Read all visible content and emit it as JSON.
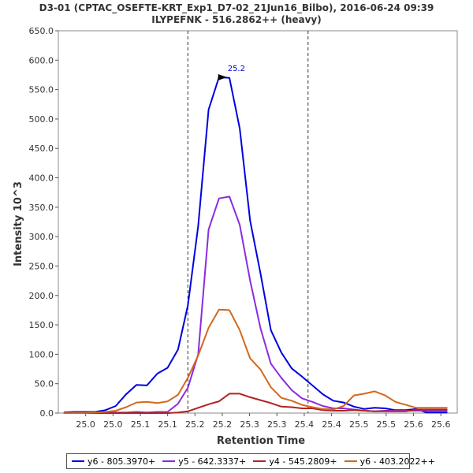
{
  "chart_data": {
    "type": "line",
    "title": "D3-01 (CPTAC_OSEFTE-KRT_Exp1_D7-02_21Jun16_Bilbo), 2016-06-24 09:39",
    "subtitle": "ILYPEFNK - 516.2862++ (heavy)",
    "xlabel": "Retention Time",
    "ylabel": "Intensity 10^3",
    "xlim": [
      24.95,
      25.68
    ],
    "ylim": [
      0,
      650
    ],
    "x_ticks": [
      25.0,
      25.05,
      25.1,
      25.15,
      25.2,
      25.25,
      25.3,
      25.35,
      25.4,
      25.45,
      25.5,
      25.55,
      25.6,
      25.65
    ],
    "x_tick_labels": [
      "25.0",
      "25.0",
      "25.1",
      "25.1",
      "25.2",
      "25.2",
      "25.3",
      "25.3",
      "25.4",
      "25.4",
      "25.5",
      "25.5",
      "25.6",
      "25.6"
    ],
    "y_ticks": [
      0,
      50,
      100,
      150,
      200,
      250,
      300,
      350,
      400,
      450,
      500,
      550,
      600,
      650
    ],
    "y_tick_labels": [
      "0.0",
      "50.0",
      "100.0",
      "150.0",
      "200.0",
      "250.0",
      "300.0",
      "350.0",
      "400.0",
      "450.0",
      "500.0",
      "550.0",
      "600.0",
      "650.0"
    ],
    "boundaries": [
      25.187,
      25.407
    ],
    "peak_label": "25.2",
    "peak_label_x": 25.254,
    "peak_label_y": 571,
    "x": [
      24.96,
      24.979,
      24.998,
      25.017,
      25.036,
      25.055,
      25.074,
      25.093,
      25.112,
      25.131,
      25.15,
      25.169,
      25.187,
      25.206,
      25.225,
      25.244,
      25.263,
      25.282,
      25.301,
      25.32,
      25.339,
      25.358,
      25.377,
      25.396,
      25.415,
      25.434,
      25.453,
      25.472,
      25.491,
      25.51,
      25.529,
      25.548,
      25.567,
      25.586,
      25.605,
      25.624,
      25.643,
      25.662
    ],
    "series": [
      {
        "name": "y6 - 805.3970+",
        "color": "#0000e0",
        "values": [
          1,
          2,
          2,
          2,
          5,
          12,
          32,
          48,
          47,
          67,
          77,
          108,
          183,
          318,
          516,
          571,
          570,
          484,
          327,
          237,
          141,
          103,
          76,
          62,
          47,
          32,
          21,
          18,
          11,
          7,
          9,
          8,
          5,
          5,
          7,
          1,
          1,
          1
        ]
      },
      {
        "name": "y5 - 642.3337+",
        "color": "#8a2be2",
        "values": [
          0,
          1,
          1,
          1,
          1,
          1,
          1,
          2,
          1,
          2,
          2,
          16,
          43,
          100,
          312,
          365,
          368,
          320,
          225,
          144,
          84,
          60,
          39,
          25,
          19,
          12,
          8,
          8,
          6,
          4,
          3,
          4,
          4,
          4,
          4,
          4,
          4,
          4
        ]
      },
      {
        "name": "y4 - 545.2809+",
        "color": "#b22222",
        "values": [
          0,
          0,
          0,
          0,
          0,
          0,
          0,
          0,
          0,
          0,
          0,
          1,
          3,
          9,
          15,
          20,
          33,
          33,
          27,
          22,
          17,
          11,
          10,
          8,
          8,
          5,
          4,
          4,
          5,
          4,
          3,
          3,
          3,
          3,
          6,
          6,
          6,
          6
        ]
      },
      {
        "name": "y6 - 403.2022++",
        "color": "#d2691e",
        "values": [
          0,
          0,
          0,
          1,
          2,
          4,
          10,
          18,
          19,
          17,
          20,
          31,
          60,
          98,
          145,
          176,
          175,
          141,
          93,
          74,
          44,
          26,
          21,
          14,
          10,
          7,
          6,
          12,
          30,
          33,
          37,
          30,
          19,
          14,
          9,
          9,
          9,
          9
        ]
      }
    ]
  }
}
